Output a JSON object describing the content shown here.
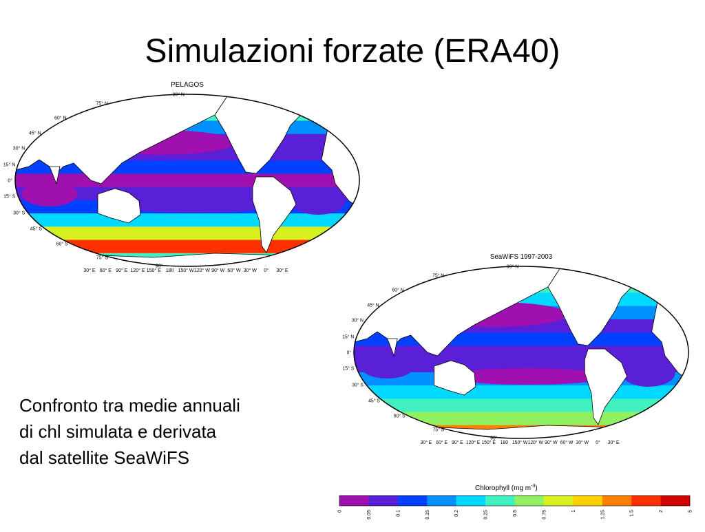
{
  "title": "Simulazioni forzate (ERA40)",
  "maps": [
    {
      "title": "PELAGOS",
      "lat_labels": [
        "90° N",
        "75° N",
        "60° N",
        "45° N",
        "30° N",
        "15° N",
        "0°",
        "15° S",
        "30° S",
        "45° S",
        "60° S",
        "75° S",
        "90°"
      ],
      "lon_labels": [
        "30° E",
        "60° E",
        "90° E",
        "120° E",
        "150° E",
        "180",
        "150° W",
        "120° W",
        "90° W",
        "60° W",
        "30° W",
        "0°",
        "30° E"
      ]
    },
    {
      "title": "SeaWiFS 1997-2003",
      "lat_labels": [
        "90° N",
        "75° N",
        "60° N",
        "45° N",
        "30° N",
        "15° N",
        "0°",
        "15° S",
        "30° S",
        "45° S",
        "60° S",
        "75° S",
        "90°"
      ],
      "lon_labels": [
        "30° E",
        "60° E",
        "90° E",
        "120° E",
        "150° E",
        "180",
        "150° W",
        "120° W",
        "90° W",
        "60° W",
        "30° W",
        "0°",
        "30° E"
      ]
    }
  ],
  "caption": [
    "Confronto tra medie annuali",
    "di chl simulata e derivata",
    "dal satellite SeaWiFS"
  ],
  "colorbar": {
    "title": [
      "Chlorophyll (mg m",
      "-3",
      ")"
    ],
    "colors": [
      "#a010b0",
      "#5a20d8",
      "#0040ff",
      "#0090ff",
      "#00d8ff",
      "#40f0c0",
      "#90f060",
      "#d8f020",
      "#ffd000",
      "#ff8000",
      "#ff3000",
      "#d00000"
    ],
    "labels": [
      "0",
      "0.05",
      "0.1",
      "0.15",
      "0.2",
      "0.25",
      "0.5",
      "0.75",
      "1",
      "1.25",
      "1.5",
      "2",
      "5"
    ]
  }
}
